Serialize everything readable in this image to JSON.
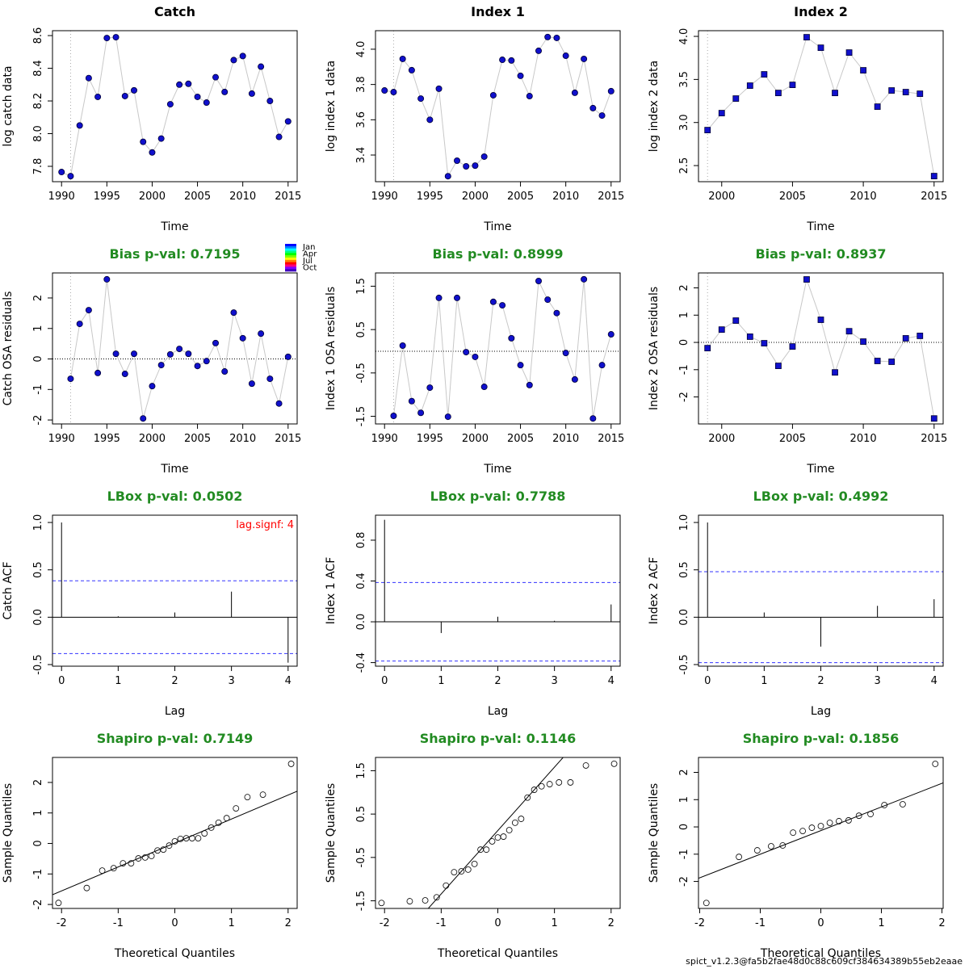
{
  "chart_data": [
    {
      "type": "line",
      "title": "Catch",
      "title_color": "#000000",
      "x_label": "Time",
      "y_label": "log catch data",
      "x": [
        1990,
        1991,
        1992,
        1993,
        1994,
        1995,
        1996,
        1997,
        1998,
        1999,
        2000,
        2001,
        2002,
        2003,
        2004,
        2005,
        2006,
        2007,
        2008,
        2009,
        2010,
        2011,
        2012,
        2013,
        2014,
        2015
      ],
      "values": [
        7.765,
        7.74,
        8.05,
        8.34,
        8.225,
        8.585,
        8.59,
        8.23,
        8.265,
        7.95,
        7.885,
        7.97,
        8.18,
        8.3,
        8.305,
        8.225,
        8.19,
        8.345,
        8.255,
        8.45,
        8.475,
        8.245,
        8.41,
        8.2,
        7.98,
        8.075
      ],
      "color": "#1010cc",
      "line_color": "#c8c8c8",
      "marker": "circle",
      "vline": 1991,
      "xlim": [
        1989,
        2016
      ],
      "xticks": [
        1990,
        1995,
        2000,
        2005,
        2010,
        2015
      ],
      "ylim": [
        7.706,
        8.63
      ],
      "yticks": [
        7.8,
        {
          "value": 8,
          "label": "8.0"
        },
        8.2,
        8.4,
        8.6
      ]
    },
    {
      "type": "line",
      "title": "Index 1",
      "title_color": "#000000",
      "x_label": "Time",
      "y_label": "log index 1 data",
      "x": [
        1990,
        1991,
        1992,
        1993,
        1994,
        1995,
        1996,
        1997,
        1998,
        1999,
        2000,
        2001,
        2002,
        2003,
        2004,
        2005,
        2006,
        2007,
        2008,
        2009,
        2010,
        2011,
        2012,
        2013,
        2014,
        2015
      ],
      "values": [
        3.766,
        3.757,
        3.945,
        3.881,
        3.72,
        3.6,
        3.776,
        3.28,
        3.368,
        3.336,
        3.34,
        3.391,
        3.739,
        3.94,
        3.936,
        3.849,
        3.734,
        3.991,
        4.069,
        4.064,
        3.963,
        3.753,
        3.945,
        3.666,
        3.624,
        3.762
      ],
      "color": "#1010cc",
      "line_color": "#c8c8c8",
      "marker": "circle",
      "vline": 1991,
      "xlim": [
        1989,
        2016
      ],
      "xticks": [
        1990,
        1995,
        2000,
        2005,
        2010,
        2015
      ],
      "ylim": [
        3.249,
        4.105
      ],
      "yticks": [
        3.4,
        3.6,
        3.8,
        {
          "value": 4,
          "label": "4.0"
        }
      ]
    },
    {
      "type": "line",
      "title": "Index 2",
      "title_color": "#000000",
      "x_label": "Time",
      "y_label": "log index 2 data",
      "x": [
        1999,
        2000,
        2001,
        2002,
        2003,
        2004,
        2005,
        2006,
        2007,
        2008,
        2009,
        2010,
        2011,
        2012,
        2013,
        2014,
        2015
      ],
      "values": [
        2.912,
        3.109,
        3.278,
        3.428,
        3.559,
        3.343,
        3.437,
        3.99,
        3.868,
        3.343,
        3.812,
        3.606,
        3.184,
        3.372,
        3.353,
        3.334,
        2.378
      ],
      "color": "#1010cc",
      "line_color": "#c8c8c8",
      "marker": "square",
      "vline": 1999,
      "xlim": [
        1998.36,
        2015.64
      ],
      "xticks": [
        2000,
        2005,
        2010,
        2015
      ],
      "ylim": [
        2.313,
        4.066
      ],
      "yticks": [
        2.5,
        {
          "value": 3,
          "label": "3.0"
        },
        3.5,
        {
          "value": 4,
          "label": "4.0"
        }
      ]
    },
    {
      "type": "line",
      "title": "Bias p-val: 0.7195",
      "title_color": "#228b22",
      "x_label": "Time",
      "y_label": "Catch OSA residuals",
      "x": [
        1991,
        1992,
        1993,
        1994,
        1995,
        1996,
        1997,
        1998,
        1999,
        2000,
        2001,
        2002,
        2003,
        2004,
        2005,
        2006,
        2007,
        2008,
        2009,
        2010,
        2011,
        2012,
        2013,
        2014,
        2015
      ],
      "values": [
        -0.65,
        1.15,
        1.6,
        -0.46,
        2.61,
        0.17,
        -0.49,
        0.17,
        -1.95,
        -0.89,
        -0.2,
        0.15,
        0.33,
        0.17,
        -0.23,
        -0.07,
        0.52,
        -0.41,
        1.52,
        0.68,
        -0.81,
        0.83,
        -0.65,
        -1.46,
        0.07
      ],
      "color": "#1010cc",
      "line_color": "#c8c8c8",
      "marker": "circle",
      "vline": 1991,
      "hline": 0,
      "xlim": [
        1989,
        2016
      ],
      "xticks": [
        1990,
        1995,
        2000,
        2005,
        2010,
        2015
      ],
      "ylim": [
        -2.13,
        2.82
      ],
      "yticks": [
        -2,
        -1,
        0,
        1,
        2
      ],
      "month_legend": {
        "labels": [
          "Jan",
          "Apr",
          "Jul",
          "Oct"
        ],
        "colors": [
          "#0000ff",
          "#0080ff",
          "#00ffff",
          "#00ff80",
          "#00ff00",
          "#80ff00",
          "#ffff00",
          "#ff8000",
          "#ff0000",
          "#ff0080",
          "#8000ff",
          "#4000c0"
        ]
      }
    },
    {
      "type": "line",
      "title": "Bias p-val: 0.8999",
      "title_color": "#228b22",
      "x_label": "Time",
      "y_label": "Index 1 OSA residuals",
      "x": [
        1991,
        1992,
        1993,
        1994,
        1995,
        1996,
        1997,
        1998,
        1999,
        2000,
        2001,
        2002,
        2003,
        2004,
        2005,
        2006,
        2007,
        2008,
        2009,
        2010,
        2011,
        2012,
        2013,
        2014,
        2015
      ],
      "values": [
        -1.49,
        0.13,
        -1.15,
        -1.42,
        -0.84,
        1.23,
        -1.51,
        1.23,
        -0.02,
        -0.13,
        -0.82,
        1.14,
        1.06,
        0.3,
        -0.32,
        -0.78,
        1.62,
        1.19,
        0.88,
        -0.04,
        -0.65,
        1.66,
        -1.55,
        -0.32,
        0.39
      ],
      "color": "#1010cc",
      "line_color": "#c8c8c8",
      "marker": "circle",
      "vline": 1991,
      "hline": 0,
      "xlim": [
        1989,
        2016
      ],
      "xticks": [
        1990,
        1995,
        2000,
        2005,
        2010,
        2015
      ],
      "ylim": [
        -1.676,
        1.806
      ],
      "yticks": [
        -1.5,
        -0.5,
        0.5,
        1.5
      ]
    },
    {
      "type": "line",
      "title": "Bias p-val: 0.8937",
      "title_color": "#228b22",
      "x_label": "Time",
      "y_label": "Index 2 OSA residuals",
      "x": [
        1999,
        2000,
        2001,
        2002,
        2003,
        2004,
        2005,
        2006,
        2007,
        2008,
        2009,
        2010,
        2011,
        2012,
        2013,
        2014,
        2015
      ],
      "values": [
        -0.21,
        0.47,
        0.8,
        0.21,
        -0.03,
        -0.86,
        -0.15,
        2.31,
        0.83,
        -1.1,
        0.41,
        0.03,
        -0.68,
        -0.71,
        0.15,
        0.24,
        -2.79
      ],
      "color": "#1010cc",
      "line_color": "#c8c8c8",
      "marker": "square",
      "vline": 1999,
      "hline": 0,
      "xlim": [
        1998.36,
        2015.64
      ],
      "xticks": [
        2000,
        2005,
        2010,
        2015
      ],
      "ylim": [
        -2.99,
        2.548
      ],
      "yticks": [
        -2,
        -1,
        0,
        1,
        2
      ]
    },
    {
      "type": "acf",
      "title": "LBox p-val: 0.0502",
      "title_color": "#228b22",
      "x_label": "Lag",
      "y_label": "Catch ACF",
      "annotation": "lag.signf: 4",
      "annotation_color": "#ff0000",
      "x": [
        0,
        1,
        2,
        3,
        4
      ],
      "values": [
        1,
        0.01,
        0.05,
        0.27,
        -0.48
      ],
      "ci": [
        0.384,
        -0.384
      ],
      "ci_color": "#3333ff",
      "hline": 0,
      "xlim": [
        -0.16,
        4.16
      ],
      "xticks": [
        0,
        1,
        2,
        3,
        4
      ],
      "ylim": [
        -0.517,
        1.077
      ],
      "yticks": [
        -0.5,
        {
          "value": 0,
          "label": "0.0"
        },
        0.5,
        {
          "value": 1,
          "label": "1.0"
        }
      ]
    },
    {
      "type": "acf",
      "title": "LBox p-val: 0.7788",
      "title_color": "#228b22",
      "x_label": "Lag",
      "y_label": "Index 1 ACF",
      "x": [
        0,
        1,
        2,
        3,
        4
      ],
      "values": [
        1,
        -0.11,
        0.05,
        0.01,
        0.17
      ],
      "ci": [
        0.385,
        -0.385
      ],
      "ci_color": "#3333ff",
      "hline": 0,
      "xlim": [
        -0.16,
        4.16
      ],
      "xticks": [
        0,
        1,
        2,
        3,
        4
      ],
      "ylim": [
        -0.435,
        1.045
      ],
      "yticks": [
        -0.4,
        {
          "value": 0,
          "label": "0.0"
        },
        0.4,
        0.8
      ]
    },
    {
      "type": "acf",
      "title": "LBox p-val: 0.4992",
      "title_color": "#228b22",
      "x_label": "Lag",
      "y_label": "Index 2 ACF",
      "x": [
        0,
        1,
        2,
        3,
        4
      ],
      "values": [
        1,
        0.05,
        -0.31,
        0.12,
        0.19
      ],
      "ci": [
        0.48,
        -0.48
      ],
      "ci_color": "#3333ff",
      "hline": 0,
      "xlim": [
        -0.16,
        4.16
      ],
      "xticks": [
        0,
        1,
        2,
        3,
        4
      ],
      "ylim": [
        -0.517,
        1.077
      ],
      "yticks": [
        -0.5,
        {
          "value": 0,
          "label": "0.0"
        },
        0.5,
        {
          "value": 1,
          "label": "1.0"
        }
      ]
    },
    {
      "type": "qq",
      "title": "Shapiro p-val: 0.7149",
      "title_color": "#228b22",
      "x_label": "Theoretical Quantiles",
      "y_label": "Sample Quantiles",
      "x": [
        -2.054,
        -1.555,
        -1.282,
        -1.08,
        -0.915,
        -0.772,
        -0.643,
        -0.524,
        -0.412,
        -0.305,
        -0.202,
        -0.1,
        0,
        0.1,
        0.202,
        0.305,
        0.412,
        0.524,
        0.643,
        0.772,
        0.915,
        1.08,
        1.282,
        1.555,
        2.054
      ],
      "values": [
        -1.95,
        -1.46,
        -0.89,
        -0.81,
        -0.65,
        -0.65,
        -0.49,
        -0.46,
        -0.41,
        -0.23,
        -0.2,
        -0.07,
        0.07,
        0.15,
        0.17,
        0.17,
        0.17,
        0.33,
        0.52,
        0.68,
        0.83,
        1.15,
        1.52,
        1.6,
        2.61
      ],
      "xlim": [
        -2.16,
        2.16
      ],
      "xticks": [
        -2,
        -1,
        0,
        1,
        2
      ],
      "ylim": [
        -2.13,
        2.82
      ],
      "yticks": [
        -2,
        -1,
        0,
        1,
        2
      ]
    },
    {
      "type": "qq",
      "title": "Shapiro p-val: 0.1146",
      "title_color": "#228b22",
      "x_label": "Theoretical Quantiles",
      "y_label": "Sample Quantiles",
      "x": [
        -2.054,
        -1.555,
        -1.282,
        -1.08,
        -0.915,
        -0.772,
        -0.643,
        -0.524,
        -0.412,
        -0.305,
        -0.202,
        -0.1,
        0,
        0.1,
        0.202,
        0.305,
        0.412,
        0.524,
        0.643,
        0.772,
        0.915,
        1.08,
        1.282,
        1.555,
        2.054
      ],
      "values": [
        -1.55,
        -1.51,
        -1.49,
        -1.42,
        -1.15,
        -0.84,
        -0.82,
        -0.78,
        -0.65,
        -0.32,
        -0.32,
        -0.13,
        -0.04,
        -0.02,
        0.13,
        0.3,
        0.39,
        0.88,
        1.06,
        1.14,
        1.19,
        1.23,
        1.23,
        1.62,
        1.66
      ],
      "xlim": [
        -2.16,
        2.16
      ],
      "xticks": [
        -2,
        -1,
        0,
        1,
        2
      ],
      "ylim": [
        -1.676,
        1.806
      ],
      "yticks": [
        -1.5,
        -0.5,
        0.5,
        1.5
      ]
    },
    {
      "type": "qq",
      "title": "Shapiro p-val: 0.1856",
      "title_color": "#228b22",
      "x_label": "Theoretical Quantiles",
      "y_label": "Sample Quantiles",
      "x": [
        -1.89,
        -1.352,
        -1.049,
        -0.821,
        -0.629,
        -0.458,
        -0.299,
        -0.148,
        0,
        0.148,
        0.299,
        0.458,
        0.629,
        0.821,
        1.049,
        1.352,
        1.89
      ],
      "values": [
        -2.79,
        -1.1,
        -0.86,
        -0.71,
        -0.68,
        -0.21,
        -0.15,
        -0.03,
        0.03,
        0.15,
        0.21,
        0.24,
        0.41,
        0.47,
        0.8,
        0.83,
        2.31
      ],
      "xlim": [
        -2.02,
        2.02
      ],
      "xticks": [
        -2,
        -1,
        0,
        1,
        2
      ],
      "ylim": [
        -2.99,
        2.548
      ],
      "yticks": [
        -2,
        -1,
        0,
        1,
        2
      ]
    }
  ],
  "footer": "spict_v1.2.3@fa5b2fae48d0c88c609cf384634389b55eb2eaae"
}
